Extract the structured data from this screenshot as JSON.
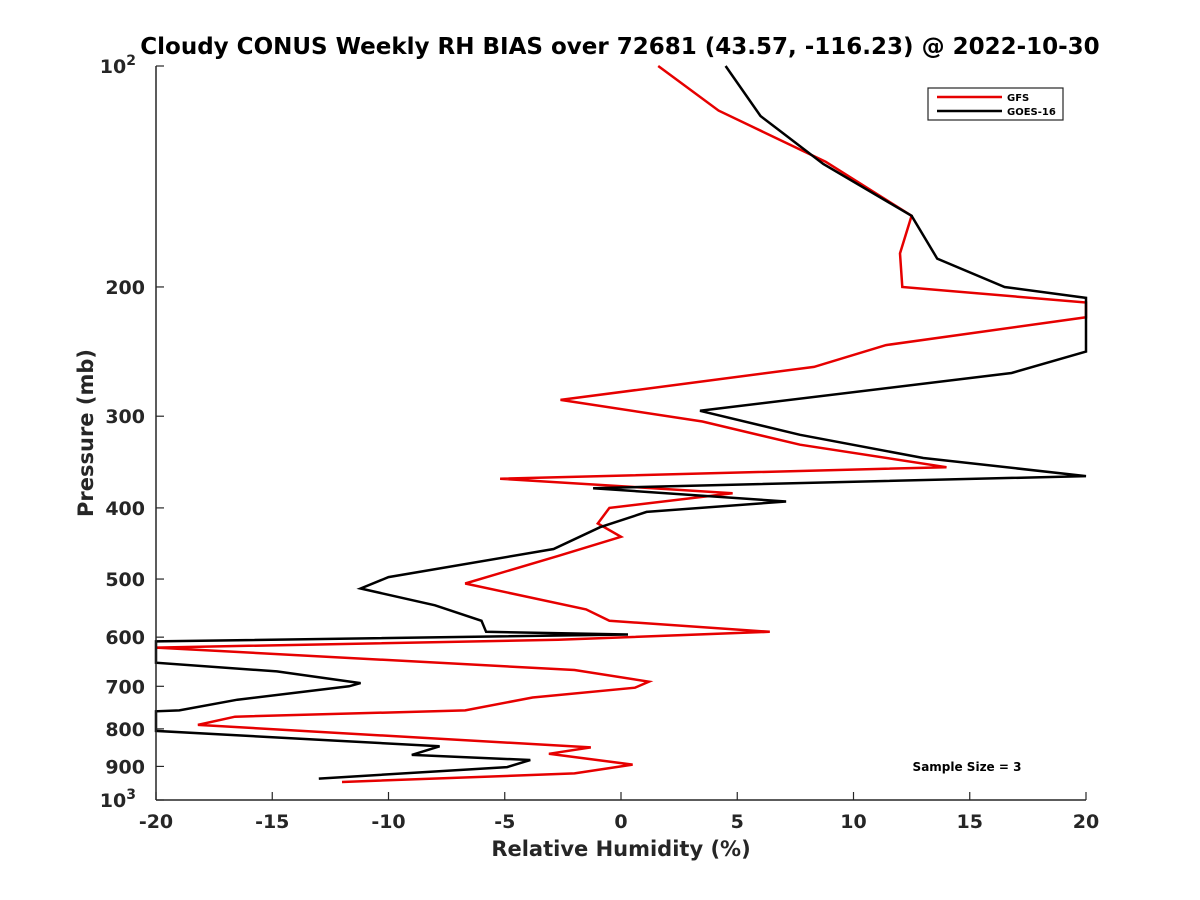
{
  "chart_data": {
    "type": "line",
    "title": "Cloudy CONUS Weekly RH BIAS over 72681 (43.57, -116.23) @ 2022-10-30",
    "xlabel": "Relative Humidity (%)",
    "ylabel": "Pressure (mb)",
    "xlim": [
      -20,
      20
    ],
    "ylim": [
      100,
      1000
    ],
    "y_scale": "log",
    "y_reversed": true,
    "grid": false,
    "legend_position": "top-right",
    "x_ticks": [
      -20,
      -15,
      -10,
      -5,
      0,
      5,
      10,
      15,
      20
    ],
    "x_tick_labels": [
      "-20",
      "-15",
      "-10",
      "-5",
      "0",
      "5",
      "10",
      "15",
      "20"
    ],
    "y_tick_labels": [
      {
        "value": 100,
        "base": "10",
        "exp": "2"
      },
      {
        "value": 200,
        "base": "200",
        "exp": ""
      },
      {
        "value": 300,
        "base": "300",
        "exp": ""
      },
      {
        "value": 400,
        "base": "400",
        "exp": ""
      },
      {
        "value": 500,
        "base": "500",
        "exp": ""
      },
      {
        "value": 600,
        "base": "600",
        "exp": ""
      },
      {
        "value": 700,
        "base": "700",
        "exp": ""
      },
      {
        "value": 800,
        "base": "800",
        "exp": ""
      },
      {
        "value": 900,
        "base": "900",
        "exp": ""
      },
      {
        "value": 1000,
        "base": "10",
        "exp": "3"
      }
    ],
    "annotation": "Sample Size = 3",
    "series": [
      {
        "name": "GFS",
        "color": "#e60000",
        "points": [
          [
            1.6,
            100
          ],
          [
            4.2,
            115
          ],
          [
            8.8,
            135
          ],
          [
            12.5,
            160
          ],
          [
            12.0,
            180
          ],
          [
            12.1,
            200
          ],
          [
            20.0,
            210
          ],
          [
            20.0,
            220
          ],
          [
            11.4,
            240
          ],
          [
            8.3,
            257
          ],
          [
            -2.6,
            285
          ],
          [
            3.5,
            305
          ],
          [
            7.7,
            328
          ],
          [
            14.0,
            352
          ],
          [
            -5.2,
            365
          ],
          [
            4.8,
            382
          ],
          [
            -0.5,
            400
          ],
          [
            -1.0,
            420
          ],
          [
            0.0,
            438
          ],
          [
            -2.7,
            465
          ],
          [
            -6.7,
            507
          ],
          [
            -1.5,
            550
          ],
          [
            -0.5,
            570
          ],
          [
            6.4,
            590
          ],
          [
            -2.7,
            605
          ],
          [
            -20.0,
            620
          ],
          [
            -2.0,
            665
          ],
          [
            1.2,
            690
          ],
          [
            0.6,
            703
          ],
          [
            -3.8,
            725
          ],
          [
            -6.7,
            755
          ],
          [
            -16.6,
            770
          ],
          [
            -18.2,
            790
          ],
          [
            -1.3,
            848
          ],
          [
            -3.1,
            865
          ],
          [
            0.5,
            895
          ],
          [
            -2.0,
            920
          ],
          [
            -12.0,
            945
          ]
        ]
      },
      {
        "name": "GOES-16",
        "color": "#000000",
        "points": [
          [
            4.5,
            100
          ],
          [
            6.0,
            117
          ],
          [
            8.7,
            136
          ],
          [
            12.5,
            160
          ],
          [
            13.6,
            183
          ],
          [
            16.5,
            200
          ],
          [
            20.0,
            207
          ],
          [
            20.0,
            245
          ],
          [
            16.8,
            262
          ],
          [
            3.4,
            295
          ],
          [
            7.7,
            318
          ],
          [
            13.0,
            342
          ],
          [
            20.0,
            362
          ],
          [
            -1.2,
            376
          ],
          [
            7.1,
            392
          ],
          [
            1.1,
            405
          ],
          [
            -0.9,
            425
          ],
          [
            -2.9,
            455
          ],
          [
            -10.0,
            497
          ],
          [
            -11.2,
            515
          ],
          [
            -8.0,
            543
          ],
          [
            -6.0,
            570
          ],
          [
            -5.8,
            590
          ],
          [
            0.3,
            595
          ],
          [
            -20.0,
            608
          ],
          [
            -20.0,
            650
          ],
          [
            -14.8,
            668
          ],
          [
            -11.2,
            693
          ],
          [
            -11.7,
            700
          ],
          [
            -16.5,
            730
          ],
          [
            -19.0,
            755
          ],
          [
            -20.0,
            757
          ],
          [
            -20.0,
            805
          ],
          [
            -12.3,
            830
          ],
          [
            -7.8,
            845
          ],
          [
            -9.0,
            868
          ],
          [
            -3.9,
            882
          ],
          [
            -4.9,
            902
          ],
          [
            -13.0,
            935
          ]
        ]
      }
    ]
  }
}
